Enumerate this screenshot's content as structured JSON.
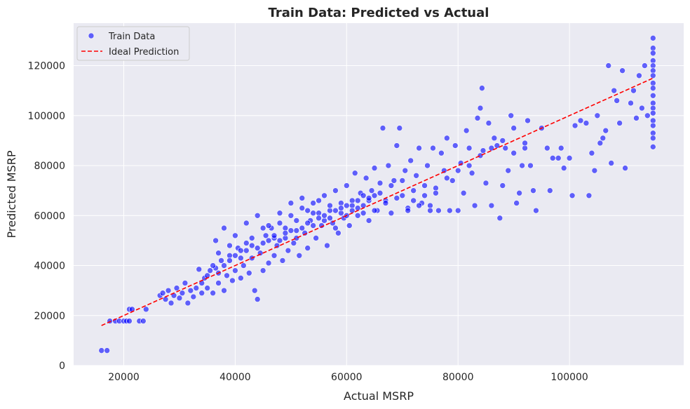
{
  "chart_data": {
    "type": "scatter",
    "title": "Train Data: Predicted vs Actual",
    "xlabel": "Actual MSRP",
    "ylabel": "Predicted MSRP",
    "xlim": [
      11000,
      120500
    ],
    "ylim": [
      0,
      137000
    ],
    "xticks": [
      20000,
      40000,
      60000,
      80000,
      100000
    ],
    "yticks": [
      0,
      20000,
      40000,
      60000,
      80000,
      100000,
      120000
    ],
    "grid": true,
    "legend_position": "top-left",
    "colors": {
      "background": "#eaeaf2",
      "points": "#0000ff",
      "points_edge": "#ffffff",
      "ideal": "#ff0000",
      "text": "#262626"
    },
    "series": [
      {
        "name": "Train Data",
        "type": "scatter",
        "points": [
          [
            16000,
            6000
          ],
          [
            17000,
            6000
          ],
          [
            17500,
            17800
          ],
          [
            18500,
            17800
          ],
          [
            19200,
            17800
          ],
          [
            20000,
            17800
          ],
          [
            20500,
            17800
          ],
          [
            21000,
            22500
          ],
          [
            21500,
            22500
          ],
          [
            22800,
            17800
          ],
          [
            23500,
            17800
          ],
          [
            24000,
            22500
          ],
          [
            21000,
            17800
          ],
          [
            26500,
            28000
          ],
          [
            27000,
            29000
          ],
          [
            27500,
            26500
          ],
          [
            28000,
            30000
          ],
          [
            28500,
            25000
          ],
          [
            29000,
            28000
          ],
          [
            29500,
            31000
          ],
          [
            30000,
            27000
          ],
          [
            30500,
            29000
          ],
          [
            31000,
            33000
          ],
          [
            31500,
            25000
          ],
          [
            32000,
            30000
          ],
          [
            32500,
            27500
          ],
          [
            33000,
            31000
          ],
          [
            33500,
            38500
          ],
          [
            34000,
            29000
          ],
          [
            34500,
            35000
          ],
          [
            35000,
            31000
          ],
          [
            35500,
            38000
          ],
          [
            36000,
            29000
          ],
          [
            36500,
            39000
          ],
          [
            37000,
            33000
          ],
          [
            37500,
            42000
          ],
          [
            38000,
            30000
          ],
          [
            38500,
            36000
          ],
          [
            39000,
            44000
          ],
          [
            39500,
            34000
          ],
          [
            40000,
            38000
          ],
          [
            40500,
            47000
          ],
          [
            41000,
            35000
          ],
          [
            41500,
            40000
          ],
          [
            42000,
            49000
          ],
          [
            42500,
            37000
          ],
          [
            43000,
            43000
          ],
          [
            43500,
            30000
          ],
          [
            44000,
            26500
          ],
          [
            44500,
            45000
          ],
          [
            45000,
            38000
          ],
          [
            45500,
            52000
          ],
          [
            46000,
            41000
          ],
          [
            46500,
            55000
          ],
          [
            47000,
            44000
          ],
          [
            47500,
            48000
          ],
          [
            48000,
            57000
          ],
          [
            48500,
            42000
          ],
          [
            49000,
            51000
          ],
          [
            49500,
            46000
          ],
          [
            50000,
            60000
          ],
          [
            50500,
            49000
          ],
          [
            51000,
            54000
          ],
          [
            51500,
            44000
          ],
          [
            52000,
            63000
          ],
          [
            52500,
            53000
          ],
          [
            53000,
            47000
          ],
          [
            53500,
            58000
          ],
          [
            54000,
            65000
          ],
          [
            54500,
            51000
          ],
          [
            55000,
            61000
          ],
          [
            55500,
            56000
          ],
          [
            56000,
            68000
          ],
          [
            56500,
            48000
          ],
          [
            57000,
            62000
          ],
          [
            57500,
            57000
          ],
          [
            58000,
            70000
          ],
          [
            58500,
            53000
          ],
          [
            59000,
            65000
          ],
          [
            59500,
            59000
          ],
          [
            60000,
            72000
          ],
          [
            60500,
            56000
          ],
          [
            61000,
            66000
          ],
          [
            61500,
            77000
          ],
          [
            62000,
            60000
          ],
          [
            62500,
            69000
          ],
          [
            63000,
            64000
          ],
          [
            63500,
            75000
          ],
          [
            64000,
            58000
          ],
          [
            64500,
            70000
          ],
          [
            65000,
            79000
          ],
          [
            65500,
            62000
          ],
          [
            66000,
            73000
          ],
          [
            66500,
            95000
          ],
          [
            67000,
            66000
          ],
          [
            67500,
            80000
          ],
          [
            68000,
            61000
          ],
          [
            68500,
            74000
          ],
          [
            69000,
            88000
          ],
          [
            69500,
            95000
          ],
          [
            70000,
            68000
          ],
          [
            70500,
            78000
          ],
          [
            71000,
            63000
          ],
          [
            71500,
            82000
          ],
          [
            72000,
            70000
          ],
          [
            72500,
            76000
          ],
          [
            73000,
            87000
          ],
          [
            73500,
            65000
          ],
          [
            74000,
            72000
          ],
          [
            74500,
            80000
          ],
          [
            75000,
            64000
          ],
          [
            75500,
            87000
          ],
          [
            76000,
            71000
          ],
          [
            76500,
            62000
          ],
          [
            77000,
            85000
          ],
          [
            77500,
            78000
          ],
          [
            78000,
            91000
          ],
          [
            78500,
            62000
          ],
          [
            79000,
            74000
          ],
          [
            79500,
            88000
          ],
          [
            80000,
            62000
          ],
          [
            80500,
            81000
          ],
          [
            81000,
            69000
          ],
          [
            81500,
            94000
          ],
          [
            82000,
            87000
          ],
          [
            82500,
            77000
          ],
          [
            83000,
            64000
          ],
          [
            83500,
            99000
          ],
          [
            84000,
            103000
          ],
          [
            84300,
            111000
          ],
          [
            84500,
            86000
          ],
          [
            85000,
            73000
          ],
          [
            85500,
            97000
          ],
          [
            86000,
            64000
          ],
          [
            86500,
            91000
          ],
          [
            87000,
            88000
          ],
          [
            87500,
            59000
          ],
          [
            88000,
            72000
          ],
          [
            88500,
            87000
          ],
          [
            89000,
            78000
          ],
          [
            89500,
            100000
          ],
          [
            90000,
            95000
          ],
          [
            90500,
            65000
          ],
          [
            91000,
            69000
          ],
          [
            91500,
            80000
          ],
          [
            92000,
            87000
          ],
          [
            92500,
            98000
          ],
          [
            93000,
            80000
          ],
          [
            93500,
            70000
          ],
          [
            94000,
            62000
          ],
          [
            95000,
            95000
          ],
          [
            96000,
            87000
          ],
          [
            96500,
            70000
          ],
          [
            97000,
            83000
          ],
          [
            98000,
            83000
          ],
          [
            98500,
            87000
          ],
          [
            99000,
            79000
          ],
          [
            100000,
            83000
          ],
          [
            100500,
            68000
          ],
          [
            101000,
            96000
          ],
          [
            102000,
            98000
          ],
          [
            103000,
            97000
          ],
          [
            103500,
            68000
          ],
          [
            104000,
            85000
          ],
          [
            104500,
            78000
          ],
          [
            105000,
            100000
          ],
          [
            105500,
            89000
          ],
          [
            106000,
            91000
          ],
          [
            106500,
            94000
          ],
          [
            107000,
            120000
          ],
          [
            107500,
            81000
          ],
          [
            108000,
            110000
          ],
          [
            108500,
            106000
          ],
          [
            109000,
            97000
          ],
          [
            109500,
            118000
          ],
          [
            110000,
            79000
          ],
          [
            111000,
            105000
          ],
          [
            111500,
            110000
          ],
          [
            112000,
            99000
          ],
          [
            112500,
            116000
          ],
          [
            113000,
            103000
          ],
          [
            113500,
            120000
          ],
          [
            114000,
            100000
          ],
          [
            115000,
            131000
          ],
          [
            115000,
            127000
          ],
          [
            115000,
            125000
          ],
          [
            115000,
            122000
          ],
          [
            115000,
            120000
          ],
          [
            115000,
            118000
          ],
          [
            115000,
            116000
          ],
          [
            115000,
            113000
          ],
          [
            115000,
            111000
          ],
          [
            115000,
            108000
          ],
          [
            115000,
            105000
          ],
          [
            115000,
            103000
          ],
          [
            115000,
            101000
          ],
          [
            115000,
            98000
          ],
          [
            115000,
            96000
          ],
          [
            115000,
            93000
          ],
          [
            115000,
            91000
          ],
          [
            115000,
            87500
          ],
          [
            36500,
            50000
          ],
          [
            38000,
            55000
          ],
          [
            40000,
            52000
          ],
          [
            42000,
            57000
          ],
          [
            44000,
            60000
          ],
          [
            46000,
            56000
          ],
          [
            48000,
            61000
          ],
          [
            50000,
            65000
          ],
          [
            52000,
            67000
          ],
          [
            54000,
            61000
          ],
          [
            56000,
            58000
          ],
          [
            58000,
            55000
          ],
          [
            60000,
            60000
          ],
          [
            62000,
            63000
          ],
          [
            64000,
            66000
          ],
          [
            66000,
            69000
          ],
          [
            68000,
            72000
          ],
          [
            70000,
            74000
          ],
          [
            72000,
            66000
          ],
          [
            74000,
            68000
          ],
          [
            76000,
            69000
          ],
          [
            78000,
            75000
          ],
          [
            80000,
            78000
          ],
          [
            82000,
            80000
          ],
          [
            84000,
            84000
          ],
          [
            86000,
            87000
          ],
          [
            88000,
            90000
          ],
          [
            90000,
            85000
          ],
          [
            92000,
            89000
          ],
          [
            37000,
            45000
          ],
          [
            39000,
            48000
          ],
          [
            41000,
            46000
          ],
          [
            43000,
            51000
          ],
          [
            45000,
            55000
          ],
          [
            47000,
            51000
          ],
          [
            49000,
            55000
          ],
          [
            51000,
            58000
          ],
          [
            53000,
            62000
          ],
          [
            55000,
            66000
          ],
          [
            57000,
            64000
          ],
          [
            59000,
            61000
          ],
          [
            61000,
            64000
          ],
          [
            63000,
            61000
          ],
          [
            65000,
            62000
          ],
          [
            67000,
            65000
          ],
          [
            69000,
            67000
          ],
          [
            71000,
            62000
          ],
          [
            73000,
            64000
          ],
          [
            75000,
            62000
          ],
          [
            34000,
            33000
          ],
          [
            35000,
            36000
          ],
          [
            36000,
            40000
          ],
          [
            37000,
            37000
          ],
          [
            38000,
            40000
          ],
          [
            39000,
            42000
          ],
          [
            40000,
            44000
          ],
          [
            41000,
            43000
          ],
          [
            42000,
            46000
          ],
          [
            43000,
            48000
          ],
          [
            44000,
            47000
          ],
          [
            45000,
            49000
          ],
          [
            46000,
            50000
          ],
          [
            47000,
            52000
          ],
          [
            48000,
            50000
          ],
          [
            49000,
            53000
          ],
          [
            50000,
            54000
          ],
          [
            51000,
            51000
          ],
          [
            52000,
            55000
          ],
          [
            53000,
            57000
          ],
          [
            54000,
            56000
          ],
          [
            55000,
            59000
          ],
          [
            56000,
            60000
          ],
          [
            57000,
            59000
          ],
          [
            58000,
            62000
          ],
          [
            59000,
            63000
          ],
          [
            60000,
            64000
          ],
          [
            61000,
            62000
          ],
          [
            62000,
            66000
          ],
          [
            63000,
            68000
          ],
          [
            64000,
            67000
          ],
          [
            65000,
            68000
          ]
        ]
      },
      {
        "name": "Ideal Prediction",
        "type": "line",
        "style": "dashed",
        "x": [
          16000,
          115000
        ],
        "y": [
          16000,
          115000
        ]
      }
    ]
  }
}
